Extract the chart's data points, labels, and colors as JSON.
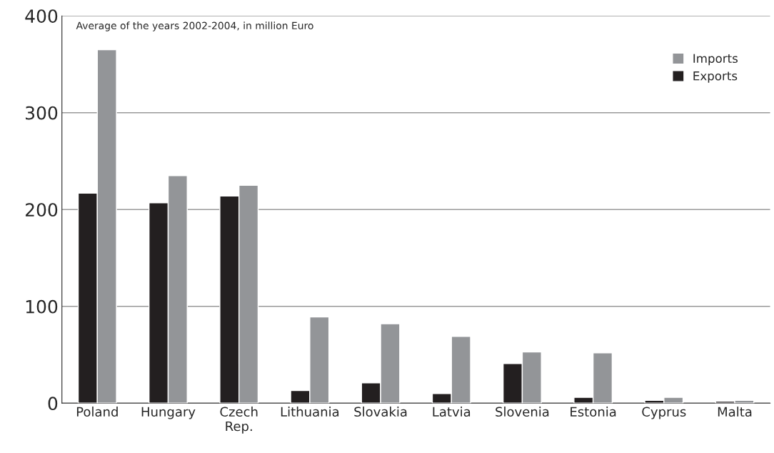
{
  "chart_data": {
    "type": "bar",
    "annotations": [
      "Average of the years 2002-2004, in million Euro"
    ],
    "categories": [
      "Poland",
      "Hungary",
      "Czech\nRep.",
      "Lithuania",
      "Slovakia",
      "Latvia",
      "Slovenia",
      "Estonia",
      "Cyprus",
      "Malta"
    ],
    "series": [
      {
        "name": "Exports",
        "color": "#231f20",
        "values": [
          217,
          207,
          214,
          13,
          21,
          10,
          41,
          6,
          3,
          2
        ]
      },
      {
        "name": "Imports",
        "color": "#939598",
        "values": [
          365,
          235,
          225,
          89,
          82,
          69,
          53,
          52,
          6,
          3
        ]
      }
    ],
    "ylim": [
      0,
      400
    ],
    "yticks": [
      0,
      100,
      200,
      300,
      400
    ],
    "grid": "y",
    "legend": "top right"
  }
}
